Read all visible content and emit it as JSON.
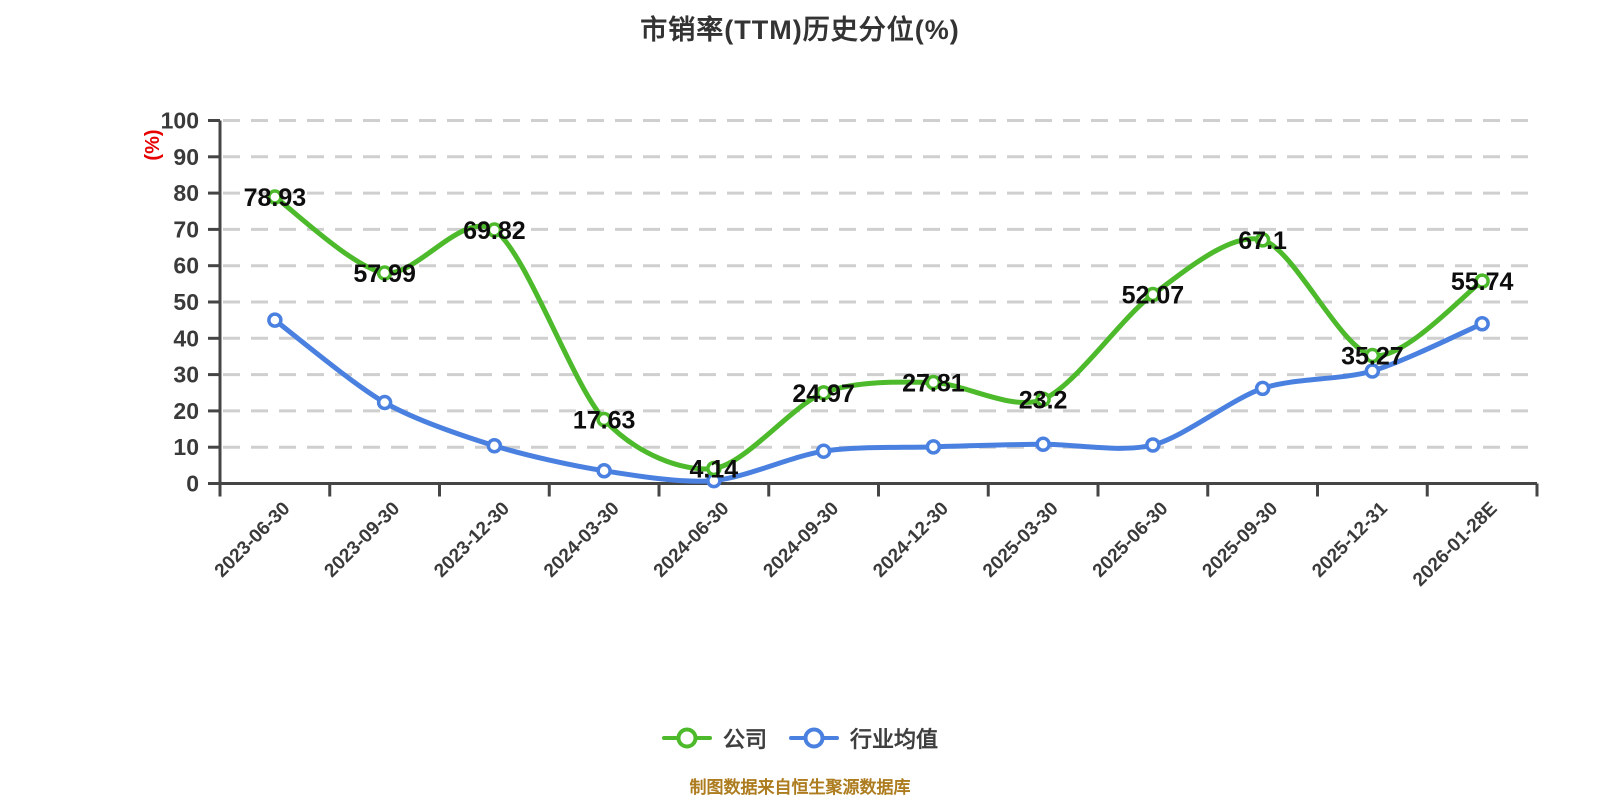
{
  "title": "市销率(TTM)历史分位(%)",
  "footer": "制图数据来自恒生聚源数据库",
  "y_axis": {
    "unit_label": "(%)",
    "min": 0,
    "max": 100,
    "ticks": [
      0,
      10,
      20,
      30,
      40,
      50,
      60,
      70,
      80,
      90,
      100
    ]
  },
  "chart_data": {
    "type": "line",
    "title": "市销率(TTM)历史分位(%)",
    "ylabel": "(%)",
    "ylim": [
      0,
      100
    ],
    "grid": "horizontal-dashed",
    "legend_position": "bottom",
    "categories": [
      "2023-06-30",
      "2023-09-30",
      "2023-12-30",
      "2024-03-30",
      "2024-06-30",
      "2024-09-30",
      "2024-12-30",
      "2025-03-30",
      "2025-06-30",
      "2025-09-30",
      "2025-12-31",
      "2026-01-28E"
    ],
    "series": [
      {
        "name": "公司",
        "color": "#4cba2a",
        "values": [
          78.93,
          57.99,
          69.82,
          17.63,
          4.14,
          24.97,
          27.81,
          23.2,
          52.07,
          67.1,
          35.27,
          55.74
        ],
        "show_point_labels": true
      },
      {
        "name": "行业均值",
        "color": "#4a80e0",
        "values": [
          45,
          22.3,
          10.4,
          3.5,
          0.8,
          8.9,
          10.1,
          10.8,
          10.6,
          26.2,
          31,
          44
        ],
        "show_point_labels": false
      }
    ],
    "point_label_color": "#0d0d0d"
  },
  "colors": {
    "background": "#ffffff",
    "title_text": "#333333",
    "axis_line": "#454545",
    "tick_label": "#3a3a3a",
    "grid_line": "#cfcfcf",
    "y_unit_label": "#e60000",
    "legend_text": "#3f3f3f",
    "footer_text": "#ad7c1f",
    "marker_fill": "#ffffff"
  }
}
